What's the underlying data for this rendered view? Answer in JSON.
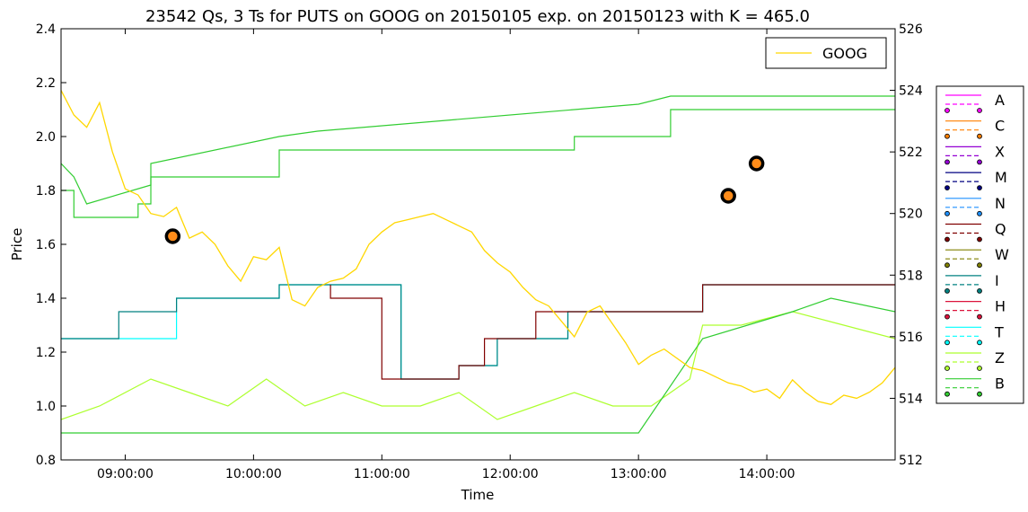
{
  "chart_data": {
    "type": "line",
    "title": "23542 Qs, 3 Ts for PUTS on GOOG on 20150105 exp. on 20150123 with K = 465.0",
    "xlabel": "Time",
    "ylabel": "Price",
    "x_ticks": [
      "09:00:00",
      "10:00:00",
      "11:00:00",
      "12:00:00",
      "13:00:00",
      "14:00:00"
    ],
    "y_left_ticks": [
      "0.8",
      "1.0",
      "1.2",
      "1.4",
      "1.6",
      "1.8",
      "2.0",
      "2.2",
      "2.4"
    ],
    "y_right_ticks": [
      "512",
      "514",
      "516",
      "518",
      "520",
      "522",
      "524",
      "526"
    ],
    "xlim_hours": [
      8.5,
      15.0
    ],
    "ylim_left": [
      0.8,
      2.4
    ],
    "ylim_right": [
      512,
      526
    ],
    "grid": false,
    "legend_top": {
      "placement": "top-right",
      "entries": [
        {
          "name": "GOOG",
          "color": "#FFD700"
        }
      ]
    },
    "legend_right": {
      "placement": "outside-right",
      "entries": [
        {
          "name": "A",
          "color": "#FF00FF"
        },
        {
          "name": "C",
          "color": "#FF8000"
        },
        {
          "name": "X",
          "color": "#9400D3"
        },
        {
          "name": "M",
          "color": "#000080"
        },
        {
          "name": "N",
          "color": "#1E90FF"
        },
        {
          "name": "Q",
          "color": "#800000"
        },
        {
          "name": "W",
          "color": "#808000"
        },
        {
          "name": "I",
          "color": "#008080"
        },
        {
          "name": "H",
          "color": "#DC143C"
        },
        {
          "name": "T",
          "color": "#00FFFF"
        },
        {
          "name": "Z",
          "color": "#ADFF2F"
        },
        {
          "name": "B",
          "color": "#32CD32"
        }
      ]
    },
    "trades": [
      {
        "time_hours": 9.37,
        "price": 1.63
      },
      {
        "time_hours": 13.7,
        "price": 1.78
      },
      {
        "time_hours": 13.92,
        "price": 1.9
      }
    ],
    "goog_series": {
      "name": "GOOG",
      "color": "#FFD700",
      "axis": "right",
      "x_hours": [
        8.5,
        8.6,
        8.7,
        8.8,
        8.9,
        9.0,
        9.1,
        9.2,
        9.3,
        9.4,
        9.5,
        9.6,
        9.7,
        9.8,
        9.9,
        10.0,
        10.1,
        10.2,
        10.3,
        10.4,
        10.5,
        10.6,
        10.7,
        10.8,
        10.9,
        11.0,
        11.1,
        11.2,
        11.3,
        11.4,
        11.5,
        11.6,
        11.7,
        11.8,
        11.9,
        12.0,
        12.1,
        12.2,
        12.3,
        12.4,
        12.5,
        12.6,
        12.7,
        12.8,
        12.9,
        13.0,
        13.1,
        13.2,
        13.3,
        13.4,
        13.5,
        13.6,
        13.7,
        13.8,
        13.9,
        14.0,
        14.1,
        14.2,
        14.3,
        14.4,
        14.5,
        14.6,
        14.7,
        14.8,
        14.9,
        15.0
      ],
      "y": [
        524.0,
        523.2,
        522.8,
        523.6,
        522.0,
        520.8,
        520.6,
        520.0,
        519.9,
        520.2,
        519.2,
        519.4,
        519.0,
        518.3,
        517.8,
        518.6,
        518.5,
        518.9,
        517.2,
        517.0,
        517.6,
        517.8,
        517.9,
        518.2,
        519.0,
        519.4,
        519.7,
        519.8,
        519.9,
        520.0,
        519.8,
        519.6,
        519.4,
        518.8,
        518.4,
        518.1,
        517.6,
        517.2,
        517.0,
        516.5,
        516.0,
        516.8,
        517.0,
        516.4,
        515.8,
        515.1,
        515.4,
        515.6,
        515.3,
        515.0,
        514.9,
        514.7,
        514.5,
        514.4,
        514.2,
        514.3,
        514.0,
        514.6,
        514.2,
        513.9,
        513.8,
        514.1,
        514.0,
        514.2,
        514.5,
        515.0
      ]
    },
    "quote_series": [
      {
        "name": "B bid",
        "color": "#32CD32",
        "x_hours": [
          8.5,
          8.6,
          8.6,
          9.1,
          9.1,
          9.2,
          9.2,
          10.2,
          10.2,
          10.5,
          10.5,
          12.5,
          12.5,
          13.0,
          13.0,
          13.25,
          13.25,
          15.0
        ],
        "y": [
          1.8,
          1.8,
          1.7,
          1.7,
          1.75,
          1.75,
          1.85,
          1.85,
          1.95,
          1.95,
          1.95,
          1.95,
          2.0,
          2.0,
          2.0,
          2.0,
          2.1,
          2.1
        ]
      },
      {
        "name": "B ask",
        "color": "#32CD32",
        "x_hours": [
          8.5,
          8.6,
          8.7,
          9.2,
          9.2,
          10.2,
          10.5,
          12.5,
          13.0,
          13.25,
          15.0
        ],
        "y": [
          1.9,
          1.85,
          1.75,
          1.82,
          1.9,
          2.0,
          2.02,
          2.1,
          2.12,
          2.15,
          2.15
        ]
      },
      {
        "name": "T bid",
        "color": "#00FFFF",
        "x_hours": [
          8.5,
          8.9,
          8.9,
          9.4,
          9.4,
          10.2,
          10.2,
          10.9,
          10.9,
          11.15,
          11.15,
          11.6,
          11.6,
          11.9,
          11.9,
          12.45,
          12.45,
          13.5,
          13.5,
          15.0
        ],
        "y": [
          1.25,
          1.25,
          1.25,
          1.25,
          1.4,
          1.4,
          1.45,
          1.45,
          1.45,
          1.45,
          1.1,
          1.1,
          1.15,
          1.15,
          1.25,
          1.25,
          1.35,
          1.35,
          1.45,
          1.45
        ]
      },
      {
        "name": "I bid",
        "color": "#008080",
        "x_hours": [
          8.5,
          8.95,
          8.95,
          9.4,
          9.4,
          10.2,
          10.2,
          11.15,
          11.15,
          11.6,
          11.6,
          11.9,
          11.9,
          12.45,
          12.45,
          13.5,
          13.5,
          15.0
        ],
        "y": [
          1.25,
          1.25,
          1.35,
          1.35,
          1.4,
          1.4,
          1.45,
          1.45,
          1.1,
          1.1,
          1.15,
          1.15,
          1.25,
          1.25,
          1.35,
          1.35,
          1.45,
          1.45
        ]
      },
      {
        "name": "Q bid",
        "color": "#800000",
        "x_hours": [
          10.6,
          10.6,
          11.0,
          11.0,
          11.6,
          11.6,
          11.8,
          11.8,
          12.2,
          12.2,
          13.5,
          13.5,
          15.0
        ],
        "y": [
          1.45,
          1.4,
          1.4,
          1.1,
          1.1,
          1.15,
          1.15,
          1.25,
          1.25,
          1.35,
          1.35,
          1.45,
          1.45
        ]
      },
      {
        "name": "Z bid",
        "color": "#ADFF2F",
        "x_hours": [
          8.5,
          8.8,
          9.2,
          9.5,
          9.8,
          10.1,
          10.4,
          10.7,
          11.0,
          11.3,
          11.6,
          11.9,
          12.2,
          12.5,
          12.8,
          13.1,
          13.4,
          13.5,
          13.8,
          14.2,
          14.6,
          15.0
        ],
        "y": [
          0.95,
          1.0,
          1.1,
          1.05,
          1.0,
          1.1,
          1.0,
          1.05,
          1.0,
          1.0,
          1.05,
          0.95,
          1.0,
          1.05,
          1.0,
          1.0,
          1.1,
          1.3,
          1.3,
          1.35,
          1.3,
          1.25
        ]
      },
      {
        "name": "B bid low",
        "color": "#32CD32",
        "x_hours": [
          8.5,
          13.0,
          13.5,
          14.2,
          14.5,
          15.0
        ],
        "y": [
          0.9,
          0.9,
          1.25,
          1.35,
          1.4,
          1.35
        ]
      }
    ]
  }
}
